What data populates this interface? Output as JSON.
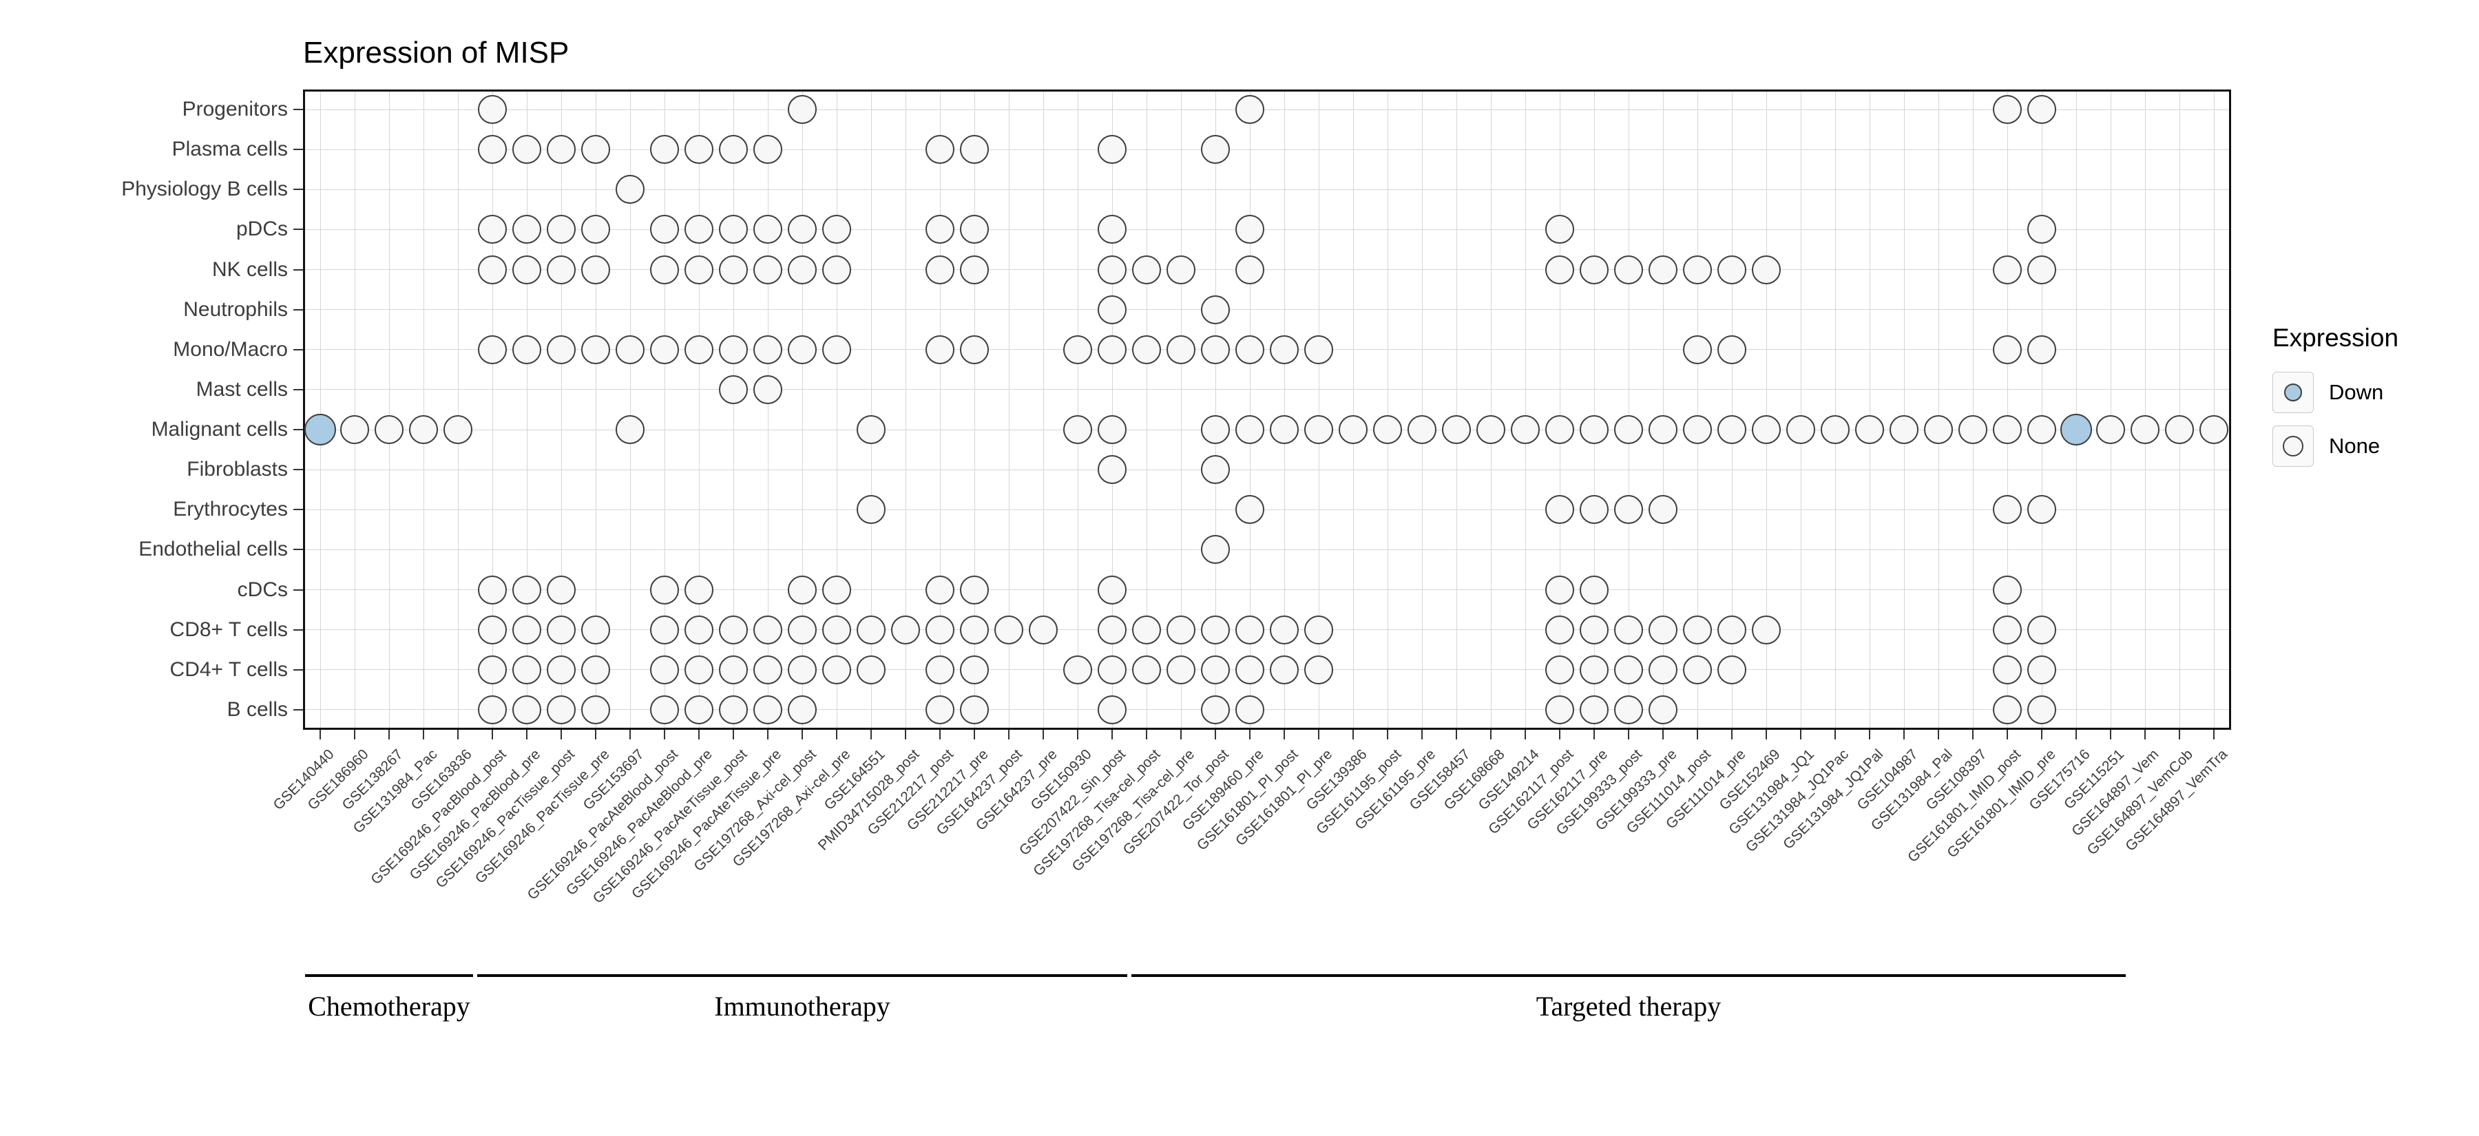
{
  "title": "Expression of MISP",
  "legend": {
    "title": "Expression",
    "items": [
      {
        "label": "Down",
        "fill": "#a9cbe3"
      },
      {
        "label": "None",
        "fill": "#f7f7f7"
      }
    ]
  },
  "colors": {
    "down_fill": "#a9cbe3",
    "none_fill": "#f7f7f7",
    "dot_stroke": "#3f3f3f",
    "grid": "#d6d6d6",
    "panel_border": "#111111"
  },
  "chart_data": {
    "type": "scatter",
    "title": "Expression of MISP",
    "legend_title": "Expression",
    "legend_entries": [
      "Down",
      "None"
    ],
    "y_categories": [
      "Progenitors",
      "Plasma cells",
      "Physiology B cells",
      "pDCs",
      "NK cells",
      "Neutrophils",
      "Mono/Macro",
      "Mast cells",
      "Malignant cells",
      "Fibroblasts",
      "Erythrocytes",
      "Endothelial cells",
      "cDCs",
      "CD8+ T cells",
      "CD4+ T cells",
      "B cells"
    ],
    "x_categories": [
      "GSE140440",
      "GSE186960",
      "GSE138267",
      "GSE131984_Pac",
      "GSE163836",
      "GSE169246_PacBlood_post",
      "GSE169246_PacBlood_pre",
      "GSE169246_PacTissue_post",
      "GSE169246_PacTissue_pre",
      "GSE153697",
      "GSE169246_PacAteBlood_post",
      "GSE169246_PacAteBlood_pre",
      "GSE169246_PacAteTissue_post",
      "GSE169246_PacAteTissue_pre",
      "GSE197268_Axi-cel_post",
      "GSE197268_Axi-cel_pre",
      "GSE164551",
      "PMID34715028_post",
      "GSE212217_post",
      "GSE212217_pre",
      "GSE164237_post",
      "GSE164237_pre",
      "GSE150930",
      "GSE207422_Sin_post",
      "GSE197268_Tisa-cel_post",
      "GSE197268_Tisa-cel_pre",
      "GSE207422_Tor_post",
      "GSE189460_pre",
      "GSE161801_PI_post",
      "GSE161801_PI_pre",
      "GSE139386",
      "GSE161195_post",
      "GSE161195_pre",
      "GSE158457",
      "GSE168668",
      "GSE149214",
      "GSE162117_post",
      "GSE162117_pre",
      "GSE199333_post",
      "GSE199333_pre",
      "GSE111014_post",
      "GSE111014_pre",
      "GSE152469",
      "GSE131984_JQ1",
      "GSE131984_JQ1Pac",
      "GSE131984_JQ1Pal",
      "GSE104987",
      "GSE131984_Pal",
      "GSE108397",
      "GSE161801_IMID_post",
      "GSE161801_IMID_pre",
      "GSE175716",
      "GSE115251",
      "GSE164897_Vem",
      "GSE164897_VemCob",
      "GSE164897_VemTra"
    ],
    "therapy_groups": [
      {
        "label": "Chemotherapy",
        "from_col": 1,
        "to_col": 5
      },
      {
        "label": "Immunotherapy",
        "from_col": 6,
        "to_col": 24
      },
      {
        "label": "Targeted therapy",
        "from_col": 25,
        "to_col": 53
      }
    ],
    "points": {
      "none": {
        "Progenitors": [
          6,
          15,
          28,
          50,
          51
        ],
        "Plasma cells": [
          6,
          7,
          8,
          9,
          11,
          12,
          13,
          14,
          19,
          20,
          24,
          27
        ],
        "Physiology B cells": [
          10
        ],
        "pDCs": [
          6,
          7,
          8,
          9,
          11,
          12,
          13,
          14,
          15,
          16,
          19,
          20,
          24,
          28,
          37,
          51
        ],
        "NK cells": [
          6,
          7,
          8,
          9,
          11,
          12,
          13,
          14,
          15,
          16,
          19,
          20,
          24,
          25,
          26,
          28,
          37,
          38,
          39,
          40,
          41,
          42,
          43,
          50,
          51
        ],
        "Neutrophils": [
          24,
          27
        ],
        "Mono/Macro": [
          6,
          7,
          8,
          9,
          10,
          11,
          12,
          13,
          14,
          15,
          16,
          19,
          20,
          23,
          24,
          25,
          26,
          27,
          28,
          29,
          30,
          41,
          42,
          50,
          51
        ],
        "Mast cells": [
          13,
          14
        ],
        "Malignant cells": [
          2,
          3,
          4,
          5,
          10,
          17,
          23,
          24,
          27,
          28,
          29,
          30,
          31,
          32,
          33,
          34,
          35,
          36,
          37,
          38,
          39,
          40,
          41,
          42,
          43,
          44,
          45,
          46,
          47,
          48,
          49,
          50,
          51,
          53,
          54,
          55,
          56
        ],
        "Fibroblasts": [
          24,
          27
        ],
        "Erythrocytes": [
          17,
          28,
          37,
          38,
          39,
          40,
          50,
          51
        ],
        "Endothelial cells": [
          27
        ],
        "cDCs": [
          6,
          7,
          8,
          11,
          12,
          15,
          16,
          19,
          20,
          24,
          37,
          38,
          50
        ],
        "CD8+ T cells": [
          6,
          7,
          8,
          9,
          11,
          12,
          13,
          14,
          15,
          16,
          17,
          18,
          19,
          20,
          21,
          22,
          24,
          25,
          26,
          27,
          28,
          29,
          30,
          37,
          38,
          39,
          40,
          41,
          42,
          43,
          50,
          51
        ],
        "CD4+ T cells": [
          6,
          7,
          8,
          9,
          11,
          12,
          13,
          14,
          15,
          16,
          17,
          19,
          20,
          23,
          24,
          25,
          26,
          27,
          28,
          29,
          30,
          37,
          38,
          39,
          40,
          41,
          42,
          50,
          51
        ],
        "B cells": [
          6,
          7,
          8,
          9,
          11,
          12,
          13,
          14,
          15,
          19,
          20,
          24,
          27,
          28,
          37,
          38,
          39,
          40,
          50,
          51
        ]
      },
      "down": {
        "Malignant cells": [
          1,
          52
        ]
      }
    }
  }
}
